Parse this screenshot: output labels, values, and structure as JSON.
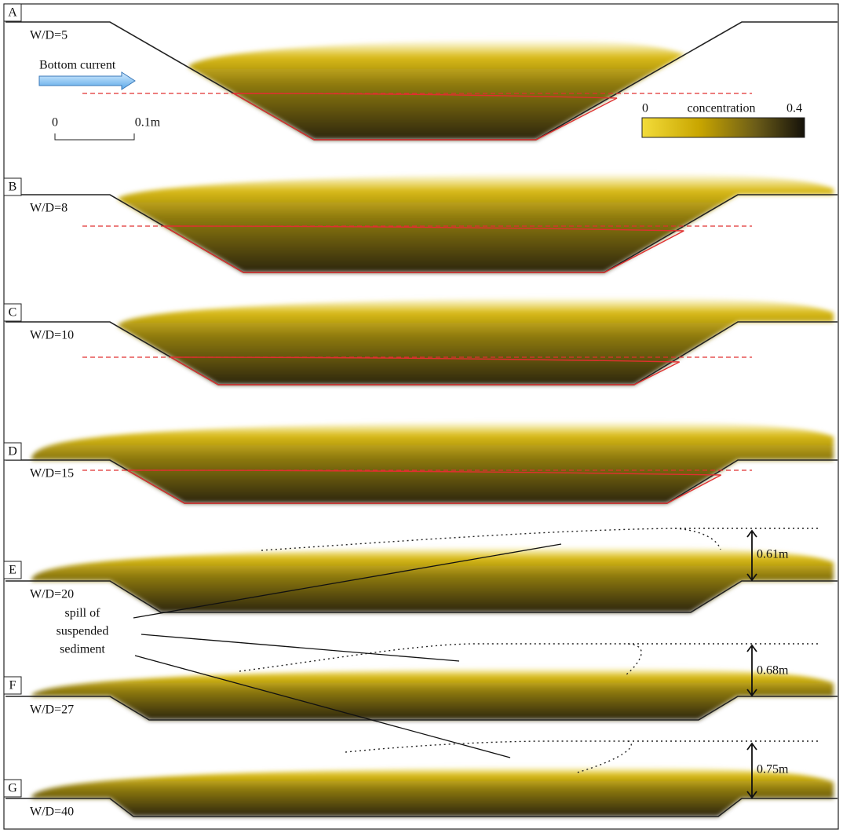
{
  "panels": [
    {
      "letter": "A",
      "label": "W/D=5"
    },
    {
      "letter": "B",
      "label": "W/D=8"
    },
    {
      "letter": "C",
      "label": "W/D=10"
    },
    {
      "letter": "D",
      "label": "W/D=15"
    },
    {
      "letter": "E",
      "label": "W/D=20"
    },
    {
      "letter": "F",
      "label": "W/D=27"
    },
    {
      "letter": "G",
      "label": "W/D=40"
    }
  ],
  "legend": {
    "arrow_label": "Bottom current",
    "scale_min": "0",
    "scale_max": "0.1m",
    "colorbar_min": "0",
    "colorbar_title": "concentration",
    "colorbar_max": "0.4"
  },
  "annotation": {
    "lines": [
      "spill of",
      "suspended",
      "sediment"
    ]
  },
  "heights": [
    "0.61m",
    "0.68m",
    "0.75m"
  ]
}
